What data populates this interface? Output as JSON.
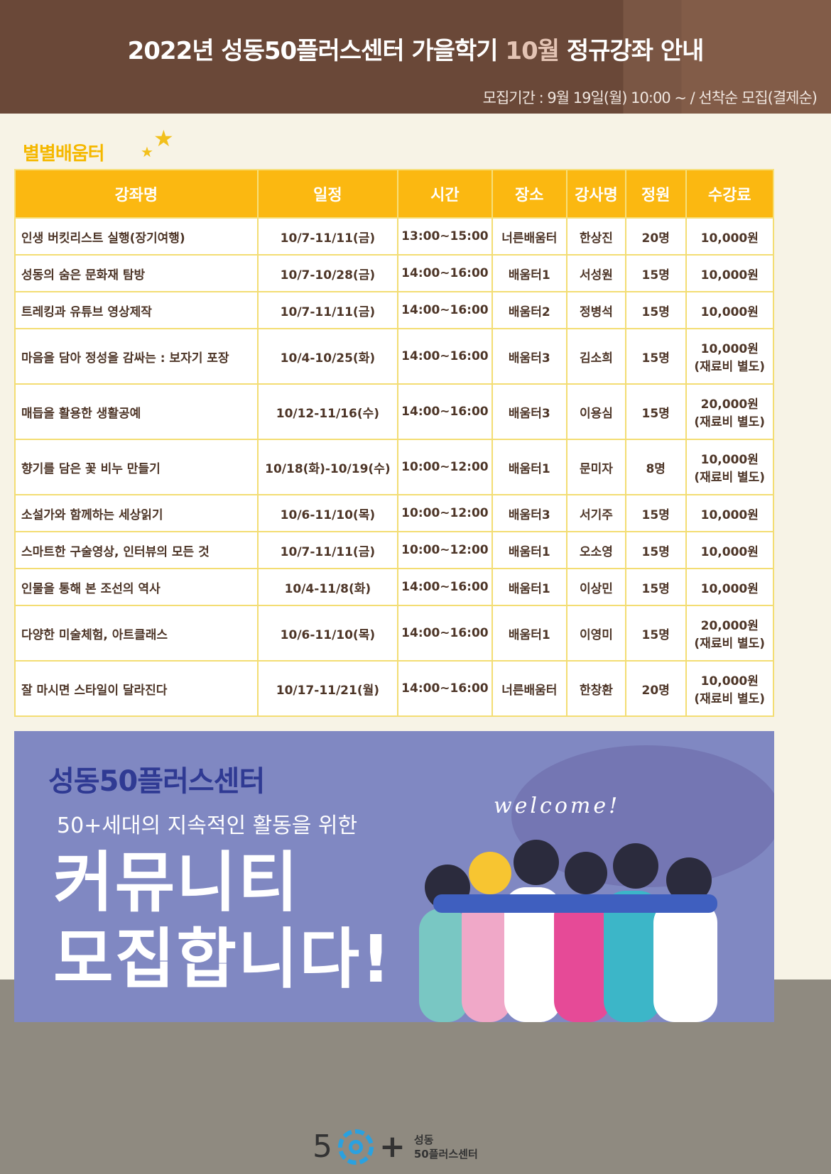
{
  "header": {
    "title_pre": "2022년 성동50플러스센터 가을학기 ",
    "title_highlight": "10월",
    "title_post": " 정규강좌 안내",
    "period": "모집기간 : 9월 19일(월) 10:00 ~ / 선착순 모집(결제순)"
  },
  "section_title": "별별배움터",
  "table": {
    "columns": [
      "강좌명",
      "일정",
      "시간",
      "장소",
      "강사명",
      "정원",
      "수강료"
    ],
    "rows": [
      {
        "name": "인생 버킷리스트 실행(장기여행)",
        "date": "10/7-11/11(금)",
        "time": "13:00~15:00",
        "place": "너른배움터",
        "teacher": "한상진",
        "cap": "20명",
        "fee": "10,000원",
        "note": ""
      },
      {
        "name": "성동의 숨은 문화재 탐방",
        "date": "10/7-10/28(금)",
        "time": "14:00~16:00",
        "place": "배움터1",
        "teacher": "서성원",
        "cap": "15명",
        "fee": "10,000원",
        "note": ""
      },
      {
        "name": "트레킹과 유튜브 영상제작",
        "date": "10/7-11/11(금)",
        "time": "14:00~16:00",
        "place": "배움터2",
        "teacher": "정병석",
        "cap": "15명",
        "fee": "10,000원",
        "note": ""
      },
      {
        "name": "마음을 담아 정성을 감싸는 : 보자기 포장",
        "date": "10/4-10/25(화)",
        "time": "14:00~16:00",
        "place": "배움터3",
        "teacher": "김소희",
        "cap": "15명",
        "fee": "10,000원",
        "note": "(재료비 별도)"
      },
      {
        "name": "매듭을 활용한 생활공예",
        "date": "10/12-11/16(수)",
        "time": "14:00~16:00",
        "place": "배움터3",
        "teacher": "이용심",
        "cap": "15명",
        "fee": "20,000원",
        "note": "(재료비 별도)"
      },
      {
        "name": "향기를 담은 꽃 비누 만들기",
        "date": "10/18(화)-10/19(수)",
        "time": "10:00~12:00",
        "place": "배움터1",
        "teacher": "문미자",
        "cap": "8명",
        "fee": "10,000원",
        "note": "(재료비 별도)"
      },
      {
        "name": "소설가와 함께하는 세상읽기",
        "date": "10/6-11/10(목)",
        "time": "10:00~12:00",
        "place": "배움터3",
        "teacher": "서기주",
        "cap": "15명",
        "fee": "10,000원",
        "note": ""
      },
      {
        "name": "스마트한 구술영상, 인터뷰의 모든 것",
        "date": "10/7-11/11(금)",
        "time": "10:00~12:00",
        "place": "배움터1",
        "teacher": "오소영",
        "cap": "15명",
        "fee": "10,000원",
        "note": ""
      },
      {
        "name": "인물을 통해 본 조선의 역사",
        "date": "10/4-11/8(화)",
        "time": "14:00~16:00",
        "place": "배움터1",
        "teacher": "이상민",
        "cap": "15명",
        "fee": "10,000원",
        "note": ""
      },
      {
        "name": "다양한 미술체험, 아트클래스",
        "date": "10/6-11/10(목)",
        "time": "14:00~16:00",
        "place": "배움터1",
        "teacher": "이영미",
        "cap": "15명",
        "fee": "20,000원",
        "note": "(재료비 별도)"
      },
      {
        "name": "잘 마시면 스타일이 달라진다",
        "date": "10/17-11/21(월)",
        "time": "14:00~16:00",
        "place": "너른배움터",
        "teacher": "한창환",
        "cap": "20명",
        "fee": "10,000원",
        "note": "(재료비 별도)"
      }
    ]
  },
  "banner": {
    "logo": "성동50플러스센터",
    "subtitle": "50+세대의 지속적인 활동을 위한",
    "headline1": "커뮤니티",
    "headline2": "모집합니다!",
    "welcome": "welcome!"
  },
  "footer": {
    "logo_number": "5",
    "logo_plus": "+",
    "line1": "성동",
    "line2": "50플러스센터"
  },
  "colors": {
    "header": "#6a4838",
    "accent": "#fbb811",
    "banner": "#8088c2",
    "logo_blue": "#2aa1e0"
  }
}
